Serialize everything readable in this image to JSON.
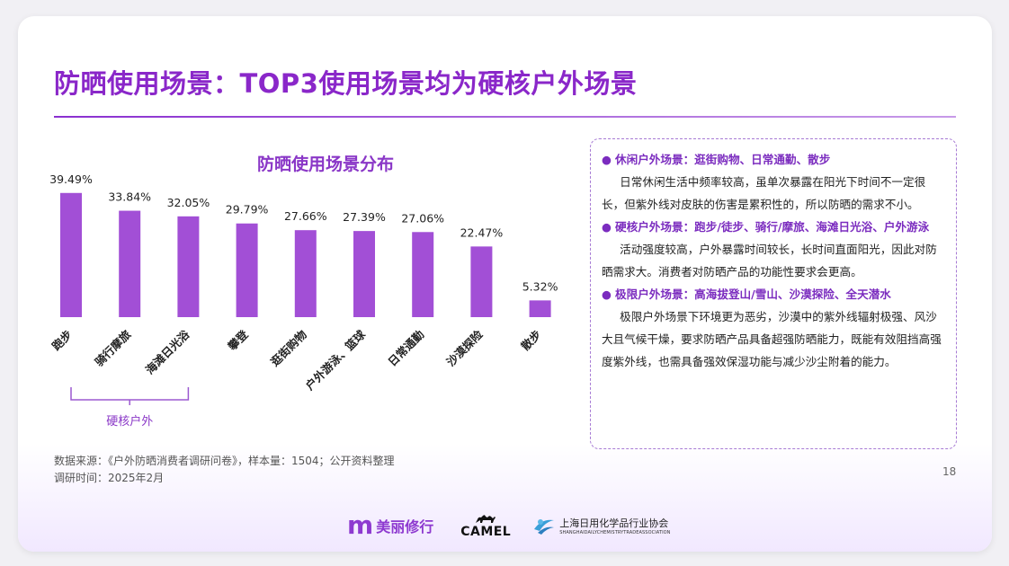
{
  "title": "防晒使用场景：TOP3使用场景均为硬核户外场景",
  "chart_title": "防晒使用场景分布",
  "chart_data": {
    "type": "bar",
    "title": "防晒使用场景分布",
    "categories": [
      "跑步",
      "骑行摩旅",
      "海滩日光浴",
      "攀登",
      "逛街购物",
      "户外游泳、篮球",
      "日常通勤",
      "沙漠探险",
      "散步"
    ],
    "values": [
      39.49,
      33.84,
      32.05,
      29.79,
      27.66,
      27.39,
      27.06,
      22.47,
      5.32
    ],
    "value_labels": [
      "39.49%",
      "33.84%",
      "32.05%",
      "29.79%",
      "27.66%",
      "27.39%",
      "27.06%",
      "22.47%",
      "5.32%"
    ],
    "ylim": [
      0,
      40
    ],
    "grid": false,
    "bar_color": "#a24fd6",
    "group_bracket": {
      "label": "硬核户外",
      "from_index": 0,
      "to_index": 2
    }
  },
  "info_box": {
    "sections": [
      {
        "heading": "休闲户外场景：逛街购物、日常通勤、散步",
        "body": "日常休闲生活中频率较高，虽单次暴露在阳光下时间不一定很长，但紫外线对皮肤的伤害是累积性的，所以防晒的需求不小。"
      },
      {
        "heading": "硬核户外场景：跑步/徒步、骑行/摩旅、海滩日光浴、户外游泳",
        "body": "活动强度较高，户外暴露时间较长，长时间直面阳光，因此对防晒需求大。消费者对防晒产品的功能性要求会更高。"
      },
      {
        "heading": "极限户外场景：高海拔登山/雪山、沙漠探险、全天潜水",
        "body": "极限户外场景下环境更为恶劣，沙漠中的紫外线辐射极强、风沙大且气候干燥，要求防晒产品具备超强防晒能力，既能有效阻挡高强度紫外线，也需具备强效保湿功能与减少沙尘附着的能力。"
      }
    ]
  },
  "source": {
    "line1": "数据来源：《户外防晒消费者调研问卷》，样本量：1504；公开资料整理",
    "line2": "调研时间：2025年2月"
  },
  "page_number": "18",
  "logos": {
    "meili_mark": "m",
    "meili_text": "美丽修行",
    "camel_text": "CAMEL",
    "assoc_cn": "上海日用化学品行业协会",
    "assoc_en": "SHANGHAIDAILYCHEMISTRYTRADEASSOCIATION"
  },
  "colors": {
    "accent": "#8a27c9",
    "bar": "#a24fd6",
    "box_border": "#a77bd4"
  }
}
